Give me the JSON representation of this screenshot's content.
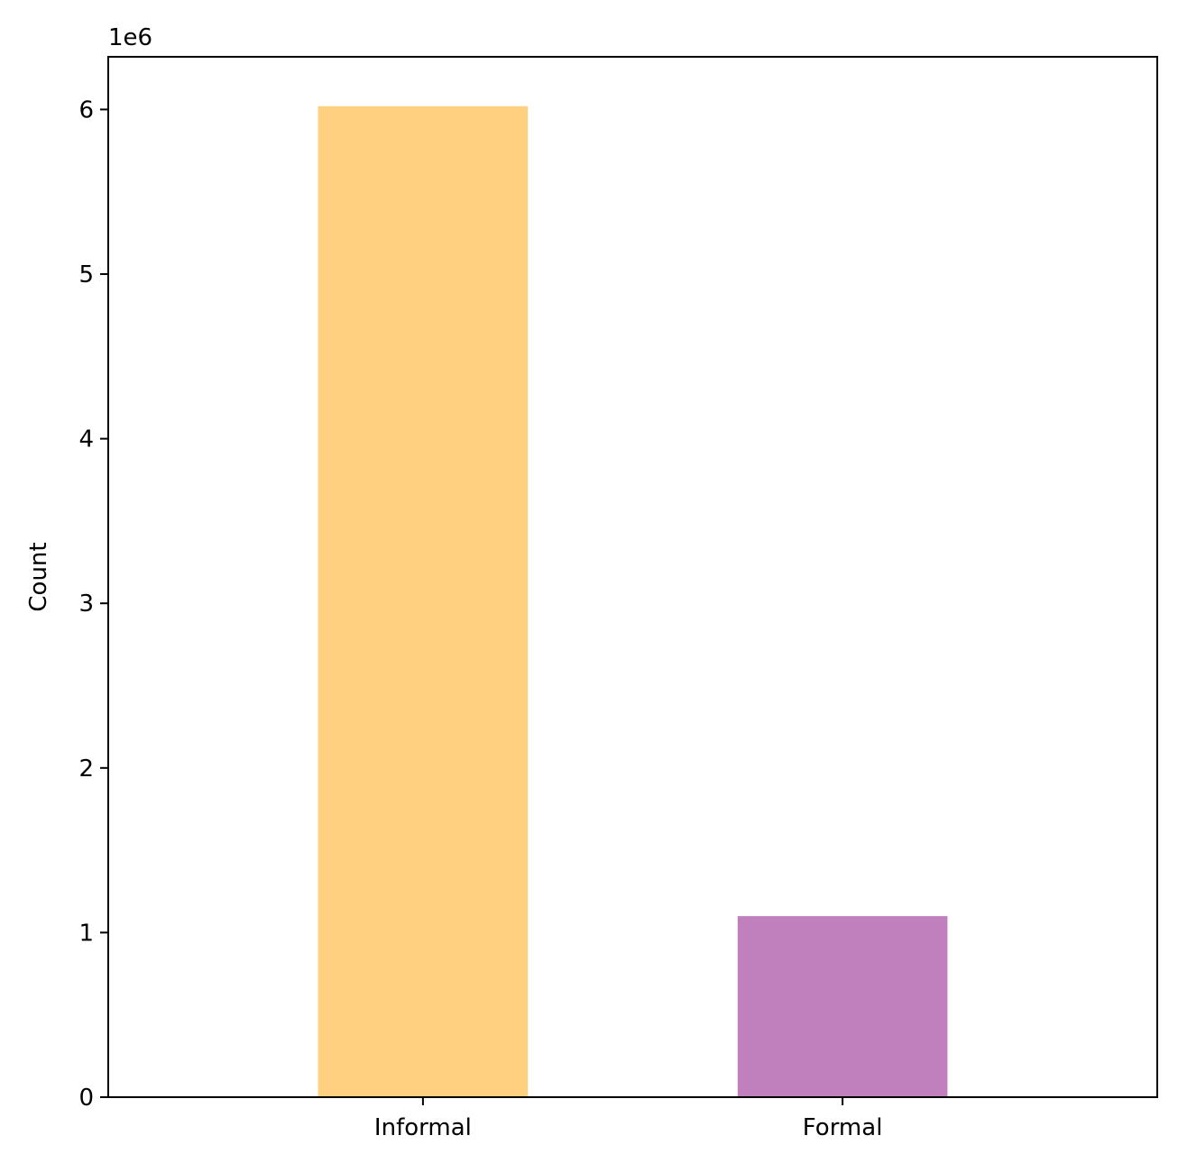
{
  "chart_data": {
    "type": "bar",
    "categories": [
      "Informal",
      "Formal"
    ],
    "values": [
      6020000,
      1100000
    ],
    "colors": [
      "#fed080",
      "#bf80bd"
    ],
    "title": "",
    "xlabel": "",
    "ylabel": "Count",
    "ylim": [
      0,
      6320000
    ],
    "yticks": [
      0,
      1,
      2,
      3,
      4,
      5,
      6
    ],
    "ytick_labels": [
      "0",
      "1",
      "2",
      "3",
      "4",
      "5",
      "6"
    ],
    "offset_text": "1e6",
    "grid": false,
    "legend": "none"
  }
}
